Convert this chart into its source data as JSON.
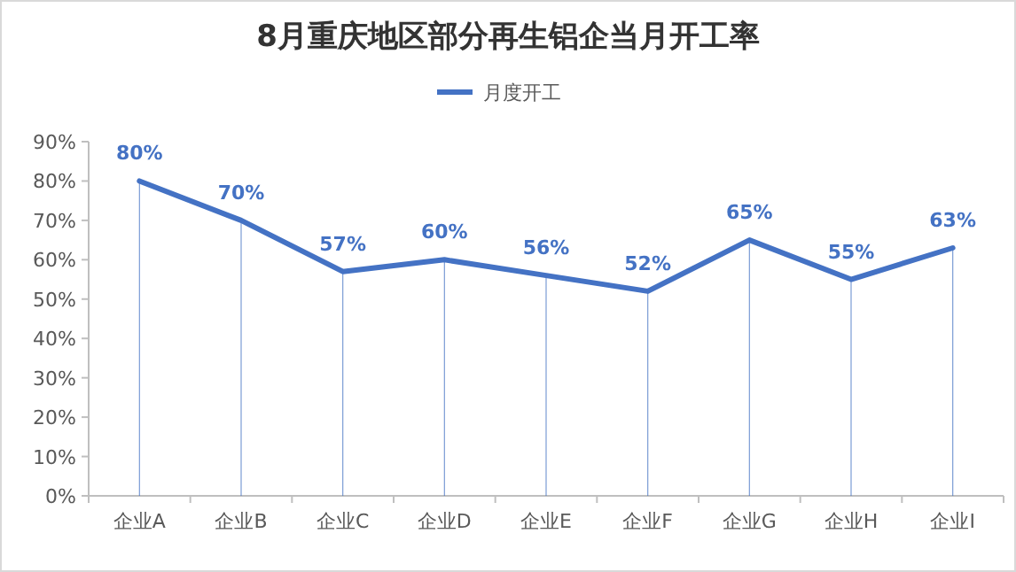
{
  "chart_data": {
    "type": "line",
    "title": "8月重庆地区部分再生铝企当月开工率",
    "categories": [
      "企业A",
      "企业B",
      "企业C",
      "企业D",
      "企业E",
      "企业F",
      "企业G",
      "企业H",
      "企业I"
    ],
    "series": [
      {
        "name": "月度开工",
        "color": "#4472c4",
        "values": [
          80,
          70,
          57,
          60,
          56,
          52,
          65,
          55,
          63
        ],
        "value_labels": [
          "80%",
          "70%",
          "57%",
          "60%",
          "56%",
          "52%",
          "65%",
          "55%",
          "63%"
        ]
      }
    ],
    "ylim": [
      0,
      90
    ],
    "yticks": [
      {
        "value": 0,
        "label": "0%"
      },
      {
        "value": 10,
        "label": "10%"
      },
      {
        "value": 20,
        "label": "20%"
      },
      {
        "value": 30,
        "label": "30%"
      },
      {
        "value": 40,
        "label": "40%"
      },
      {
        "value": 50,
        "label": "50%"
      },
      {
        "value": 60,
        "label": "60%"
      },
      {
        "value": 70,
        "label": "70%"
      },
      {
        "value": 80,
        "label": "80%"
      },
      {
        "value": 90,
        "label": "90%"
      }
    ],
    "legend": "top",
    "marker": "none",
    "line_style": "solid",
    "grid": "x"
  }
}
